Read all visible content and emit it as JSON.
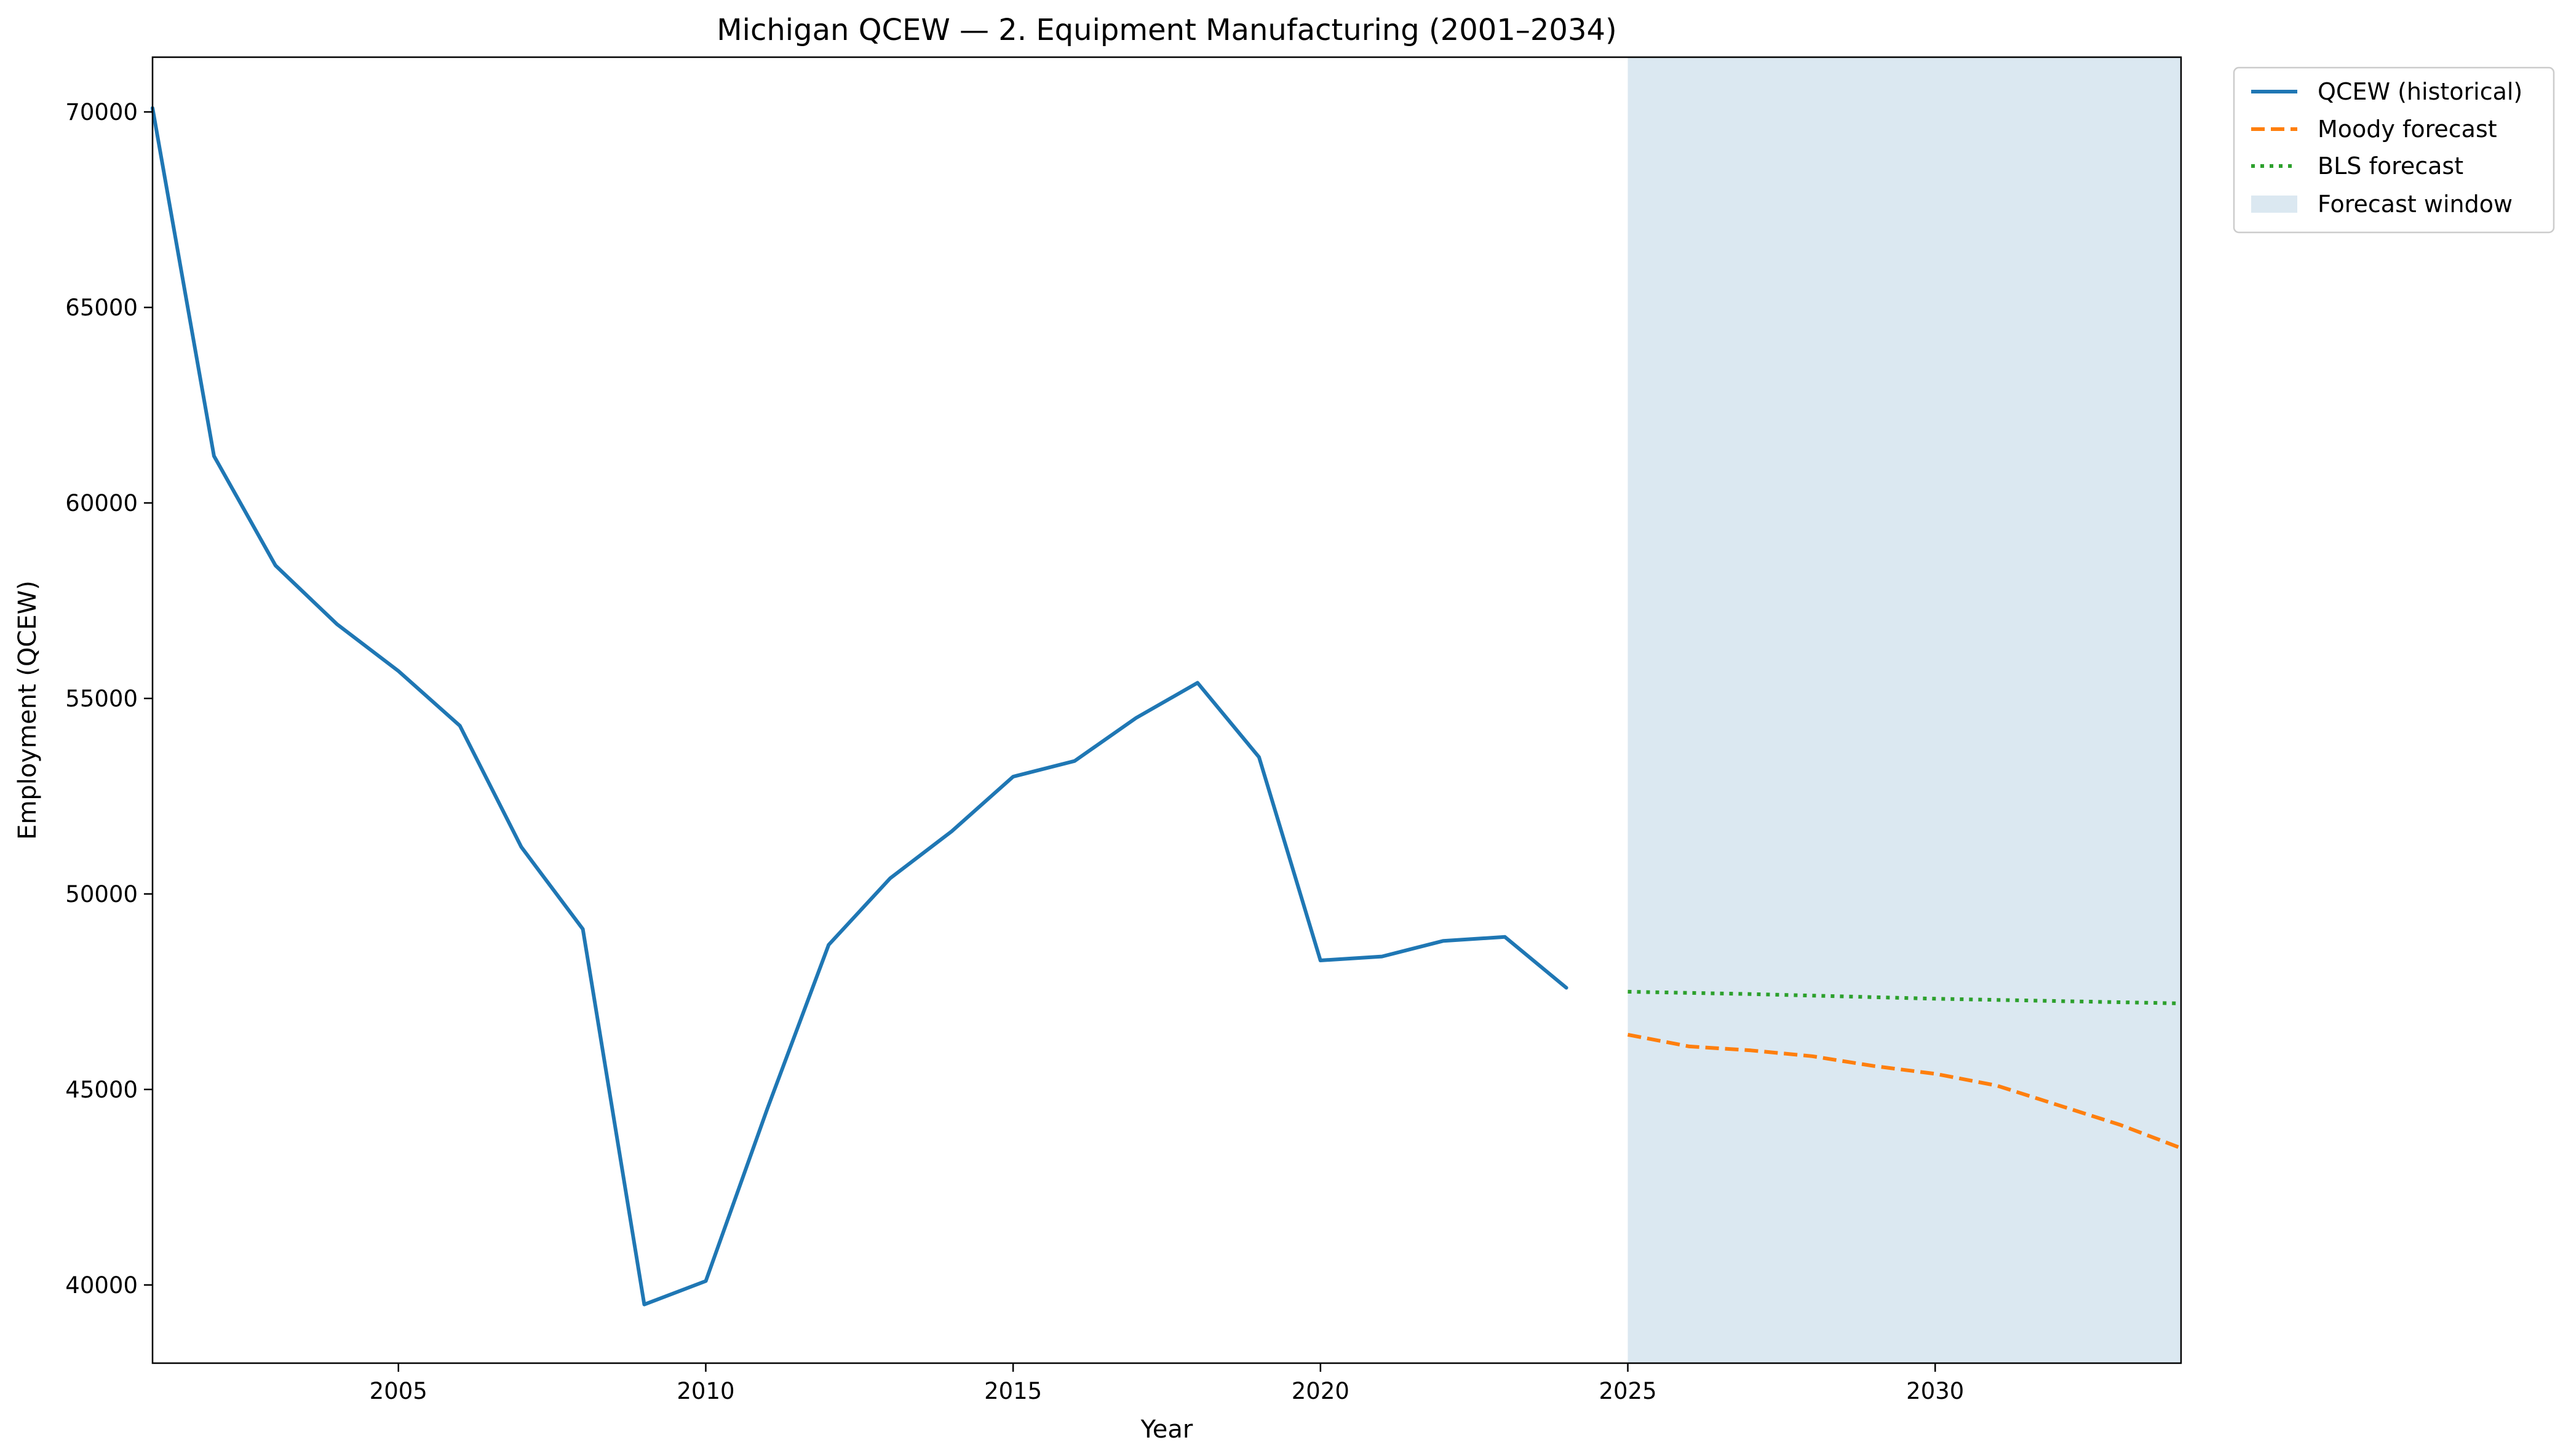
{
  "chart_data": {
    "type": "line",
    "title": "Michigan QCEW — 2. Equipment Manufacturing (2001–2034)",
    "xlabel": "Year",
    "ylabel": "Employment (QCEW)",
    "xlim": [
      2001,
      2034
    ],
    "ylim": [
      38000,
      71400
    ],
    "x_ticks": [
      2005,
      2010,
      2015,
      2020,
      2025,
      2030
    ],
    "y_ticks": [
      40000,
      45000,
      50000,
      55000,
      60000,
      65000,
      70000
    ],
    "grid": false,
    "legend_position": "outside-top-right",
    "forecast_window": {
      "label": "Forecast window",
      "start": 2025,
      "end": 2034,
      "color": "#dbe8f1"
    },
    "series": [
      {
        "name": "QCEW (historical)",
        "style": "solid",
        "color": "#1f77b4",
        "x": [
          2001,
          2002,
          2003,
          2004,
          2005,
          2006,
          2007,
          2008,
          2009,
          2010,
          2011,
          2012,
          2013,
          2014,
          2015,
          2016,
          2017,
          2018,
          2019,
          2020,
          2021,
          2022,
          2023,
          2024
        ],
        "values": [
          70100,
          61200,
          58400,
          56900,
          55700,
          54300,
          51200,
          49100,
          39500,
          40100,
          44500,
          48700,
          50400,
          51600,
          53000,
          53400,
          54500,
          55400,
          53500,
          48300,
          48400,
          48800,
          48900,
          47600
        ]
      },
      {
        "name": "Moody forecast",
        "style": "dashed",
        "color": "#ff7f0e",
        "x": [
          2025,
          2026,
          2027,
          2028,
          2029,
          2030,
          2031,
          2032,
          2033,
          2034
        ],
        "values": [
          46400,
          46100,
          46000,
          45850,
          45600,
          45400,
          45100,
          44600,
          44100,
          43500
        ]
      },
      {
        "name": "BLS forecast",
        "style": "dotted",
        "color": "#2ca02c",
        "x": [
          2025,
          2026,
          2027,
          2028,
          2029,
          2030,
          2031,
          2032,
          2033,
          2034
        ],
        "values": [
          47500,
          47470,
          47440,
          47400,
          47360,
          47320,
          47290,
          47260,
          47230,
          47200
        ]
      }
    ]
  }
}
